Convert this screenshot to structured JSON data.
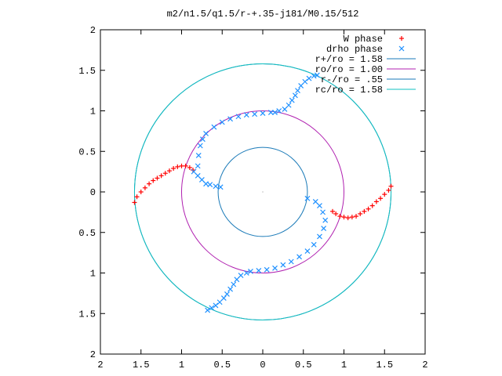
{
  "chart_data": {
    "type": "scatter",
    "title": "m2/n1.5/q1.5/r-+.35-j181/M0.15/512",
    "xlabel": "",
    "ylabel": "",
    "xlim": [
      -2,
      2
    ],
    "ylim": [
      -2,
      2
    ],
    "grid": false,
    "legend_position": "top-right",
    "x_tick_labels": [
      "2",
      "1.5",
      "1",
      "0.5",
      "0",
      "0.5",
      "1",
      "1.5",
      "2"
    ],
    "y_tick_labels": [
      "2",
      "1.5",
      "1",
      "0.5",
      "0",
      "0.5",
      "1",
      "1.5",
      "2"
    ],
    "x_ticks": [
      -2,
      -1.5,
      -1,
      -0.5,
      0,
      0.5,
      1,
      1.5,
      2
    ],
    "y_ticks": [
      2,
      1.5,
      1,
      0.5,
      0,
      -0.5,
      -1,
      -1.5,
      -2
    ],
    "circles": [
      {
        "name": "r+/ro = 1.58",
        "radius": 1.58,
        "color": "#1a7ab8"
      },
      {
        "name": "ro/ro = 1.00",
        "radius": 1.0,
        "color": "#b020b0"
      },
      {
        "name": "r-/ro = .55",
        "radius": 0.55,
        "color": "#1a7ab8"
      },
      {
        "name": "rc/ro = 1.58",
        "radius": 1.58,
        "color": "#10c0c0"
      }
    ],
    "series": [
      {
        "name": "W phase",
        "marker": "+",
        "color": "#ff0000",
        "values": [
          [
            -1.58,
            -0.13
          ],
          [
            -1.55,
            -0.06
          ],
          [
            -1.5,
            0.0
          ],
          [
            -1.45,
            0.05
          ],
          [
            -1.4,
            0.1
          ],
          [
            -1.35,
            0.14
          ],
          [
            -1.3,
            0.17
          ],
          [
            -1.25,
            0.2
          ],
          [
            -1.2,
            0.23
          ],
          [
            -1.15,
            0.26
          ],
          [
            -1.1,
            0.29
          ],
          [
            -1.05,
            0.31
          ],
          [
            -1.0,
            0.32
          ],
          [
            -0.95,
            0.32
          ],
          [
            -0.9,
            0.3
          ],
          [
            -0.86,
            0.27
          ],
          [
            1.58,
            0.07
          ],
          [
            1.55,
            0.02
          ],
          [
            1.5,
            -0.03
          ],
          [
            1.45,
            -0.08
          ],
          [
            1.4,
            -0.12
          ],
          [
            1.35,
            -0.17
          ],
          [
            1.3,
            -0.21
          ],
          [
            1.25,
            -0.24
          ],
          [
            1.2,
            -0.27
          ],
          [
            1.15,
            -0.3
          ],
          [
            1.1,
            -0.31
          ],
          [
            1.05,
            -0.32
          ],
          [
            1.0,
            -0.31
          ],
          [
            0.95,
            -0.3
          ],
          [
            0.9,
            -0.27
          ],
          [
            0.86,
            -0.24
          ]
        ]
      },
      {
        "name": "drho phase",
        "marker": "x",
        "color": "#1e90ff",
        "values": [
          [
            -0.85,
            0.25
          ],
          [
            -0.8,
            0.2
          ],
          [
            -0.75,
            0.15
          ],
          [
            -0.7,
            0.1
          ],
          [
            -0.65,
            0.09
          ],
          [
            -0.58,
            0.07
          ],
          [
            -0.52,
            0.06
          ],
          [
            -0.8,
            0.32
          ],
          [
            -0.79,
            0.45
          ],
          [
            -0.77,
            0.57
          ],
          [
            -0.74,
            0.65
          ],
          [
            -0.7,
            0.72
          ],
          [
            -0.6,
            0.8
          ],
          [
            -0.5,
            0.86
          ],
          [
            -0.4,
            0.9
          ],
          [
            -0.3,
            0.93
          ],
          [
            -0.2,
            0.95
          ],
          [
            -0.1,
            0.96
          ],
          [
            0.0,
            0.97
          ],
          [
            0.1,
            0.98
          ],
          [
            0.15,
            0.98
          ],
          [
            0.2,
            1.0
          ],
          [
            0.27,
            1.02
          ],
          [
            0.32,
            1.07
          ],
          [
            0.36,
            1.13
          ],
          [
            0.4,
            1.19
          ],
          [
            0.43,
            1.25
          ],
          [
            0.47,
            1.31
          ],
          [
            0.52,
            1.36
          ],
          [
            0.57,
            1.4
          ],
          [
            0.63,
            1.43
          ],
          [
            0.67,
            1.44
          ],
          [
            0.55,
            -0.08
          ],
          [
            0.65,
            -0.12
          ],
          [
            0.7,
            -0.17
          ],
          [
            0.74,
            -0.25
          ],
          [
            0.77,
            -0.35
          ],
          [
            0.75,
            -0.45
          ],
          [
            0.7,
            -0.55
          ],
          [
            0.63,
            -0.65
          ],
          [
            0.55,
            -0.73
          ],
          [
            0.45,
            -0.8
          ],
          [
            0.35,
            -0.86
          ],
          [
            0.25,
            -0.9
          ],
          [
            0.15,
            -0.94
          ],
          [
            0.05,
            -0.96
          ],
          [
            -0.05,
            -0.97
          ],
          [
            -0.15,
            -0.98
          ],
          [
            -0.2,
            -1.0
          ],
          [
            -0.27,
            -1.03
          ],
          [
            -0.32,
            -1.08
          ],
          [
            -0.36,
            -1.14
          ],
          [
            -0.4,
            -1.2
          ],
          [
            -0.44,
            -1.26
          ],
          [
            -0.48,
            -1.31
          ],
          [
            -0.53,
            -1.36
          ],
          [
            -0.58,
            -1.4
          ],
          [
            -0.63,
            -1.43
          ],
          [
            -0.68,
            -1.46
          ]
        ]
      }
    ]
  }
}
